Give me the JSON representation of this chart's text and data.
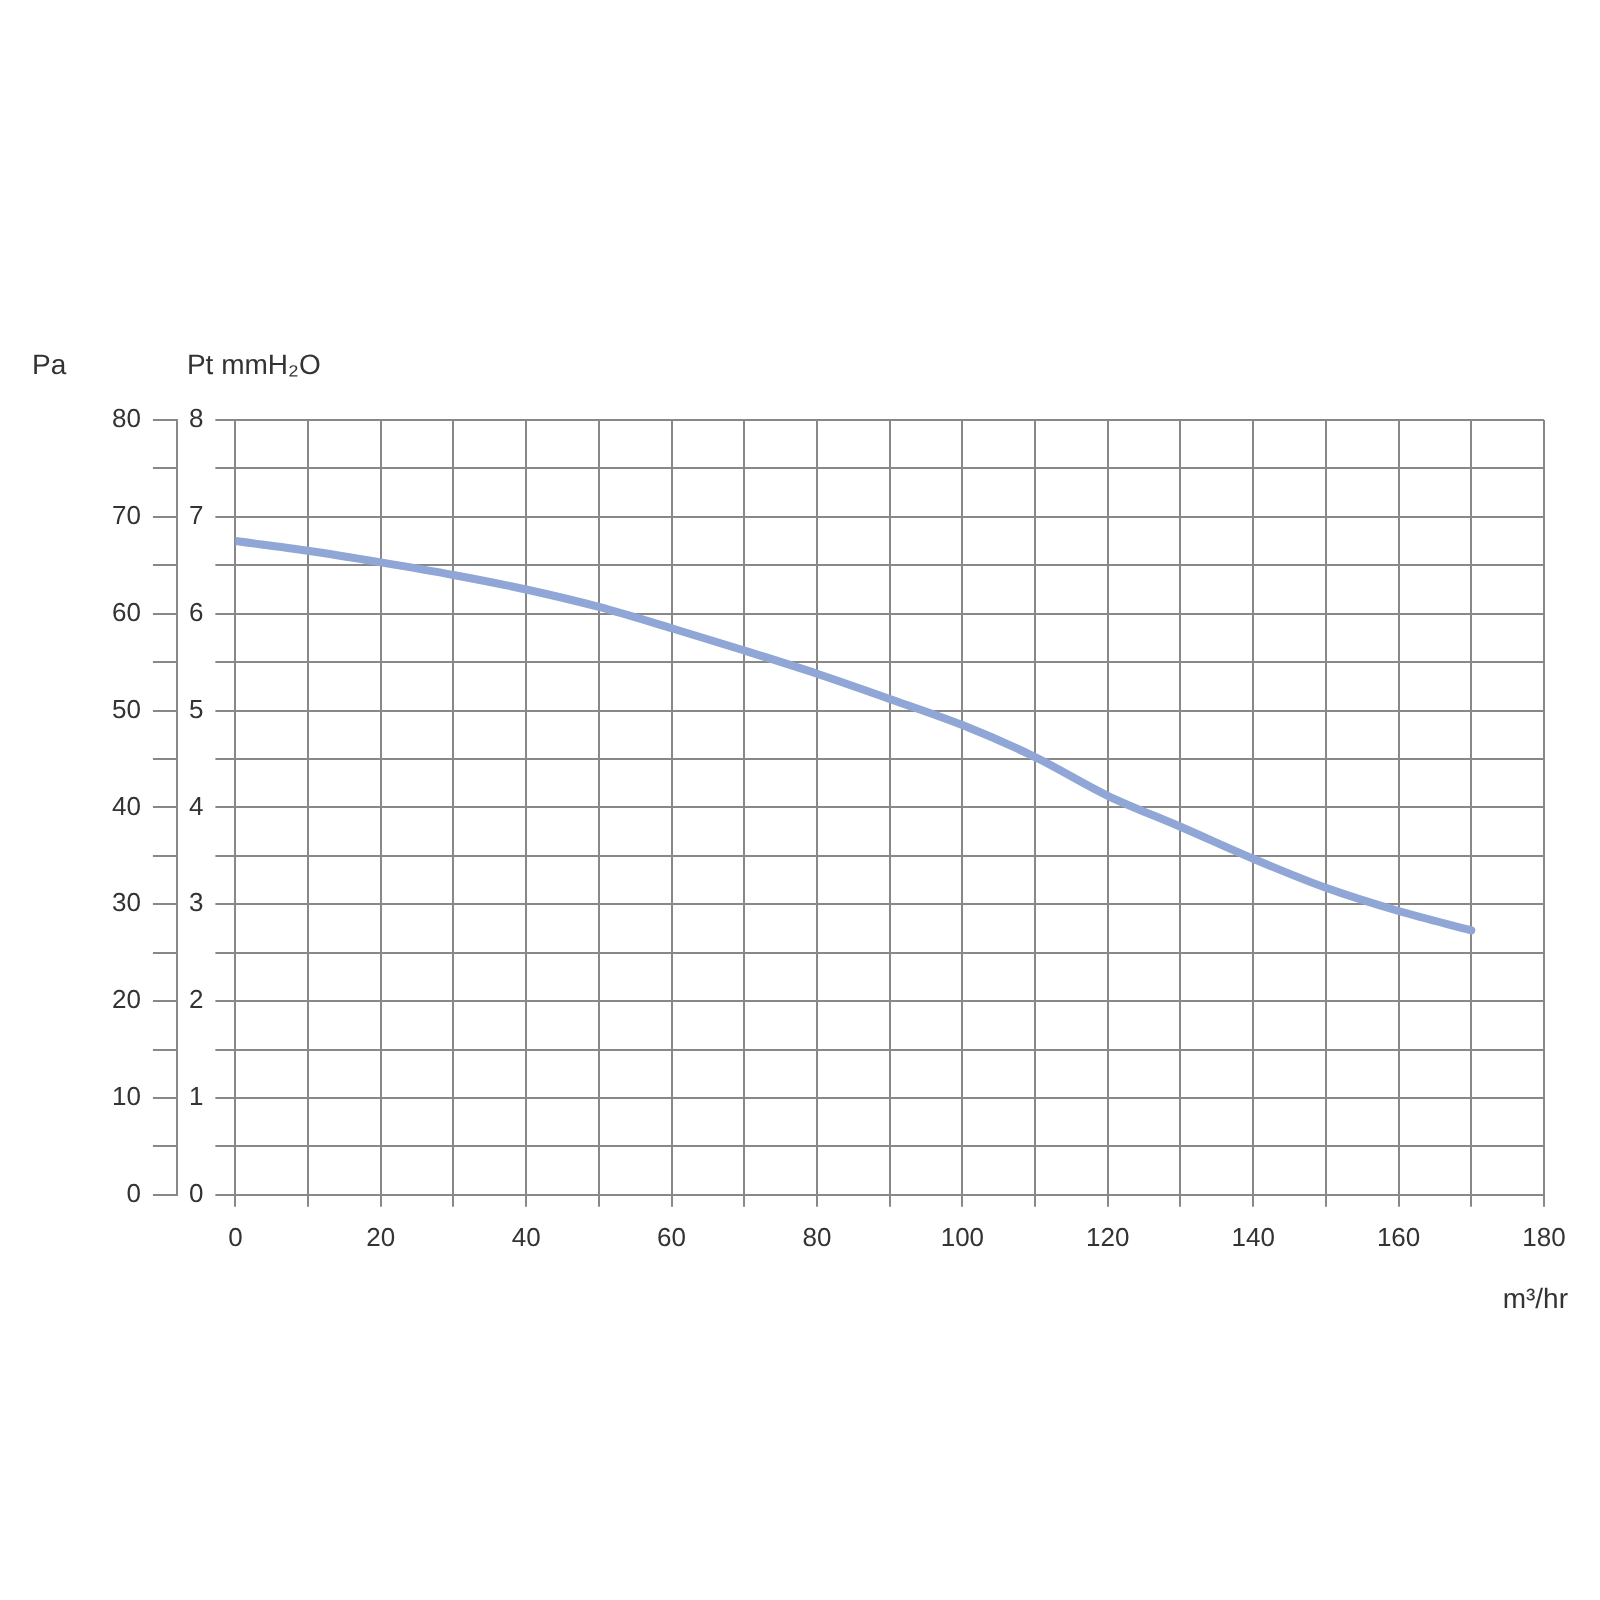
{
  "chart_data": {
    "type": "line",
    "xlabel": "m³/hr",
    "ylabel": "Pt mmH₂O",
    "y2label": "Pa",
    "x": [
      0,
      10,
      20,
      30,
      40,
      50,
      60,
      70,
      80,
      90,
      100,
      110,
      120,
      130,
      140,
      150,
      160,
      170
    ],
    "series": [
      {
        "color": "#8fa6d6",
        "values": [
          6.75,
          6.65,
          6.53,
          6.4,
          6.25,
          6.07,
          5.85,
          5.62,
          5.38,
          5.12,
          4.85,
          4.52,
          4.12,
          3.8,
          3.47,
          3.17,
          2.93,
          2.73
        ]
      }
    ],
    "xlim": [
      0,
      180
    ],
    "xticks": [
      0,
      {
        "value": 10,
        "label": null
      },
      20,
      {
        "value": 30,
        "label": null
      },
      40,
      {
        "value": 50,
        "label": null
      },
      60,
      {
        "value": 70,
        "label": null
      },
      80,
      {
        "value": 90,
        "label": null
      },
      100,
      {
        "value": 110,
        "label": null
      },
      120,
      {
        "value": 130,
        "label": null
      },
      140,
      {
        "value": 150,
        "label": null
      },
      160,
      {
        "value": 170,
        "label": null
      },
      180
    ],
    "ylim": [
      0,
      8
    ],
    "yticks": [
      0,
      {
        "value": 0.5,
        "label": null
      },
      1,
      {
        "value": 1.5,
        "label": null
      },
      2,
      {
        "value": 2.5,
        "label": null
      },
      3,
      {
        "value": 3.5,
        "label": null
      },
      4,
      {
        "value": 4.5,
        "label": null
      },
      5,
      {
        "value": 5.5,
        "label": null
      },
      6,
      {
        "value": 6.5,
        "label": null
      },
      7,
      {
        "value": 7.5,
        "label": null
      },
      8
    ],
    "y2lim": [
      0,
      80
    ],
    "y2ticks": [
      0,
      {
        "value": 5,
        "label": null
      },
      10,
      {
        "value": 15,
        "label": null
      },
      20,
      {
        "value": 25,
        "label": null
      },
      30,
      {
        "value": 35,
        "label": null
      },
      40,
      {
        "value": 45,
        "label": null
      },
      50,
      {
        "value": 55,
        "label": null
      },
      60,
      {
        "value": 65,
        "label": null
      },
      70,
      {
        "value": 75,
        "label": null
      },
      80
    ],
    "grid": true,
    "legend": false,
    "marker": "none",
    "line_style": "solid"
  }
}
